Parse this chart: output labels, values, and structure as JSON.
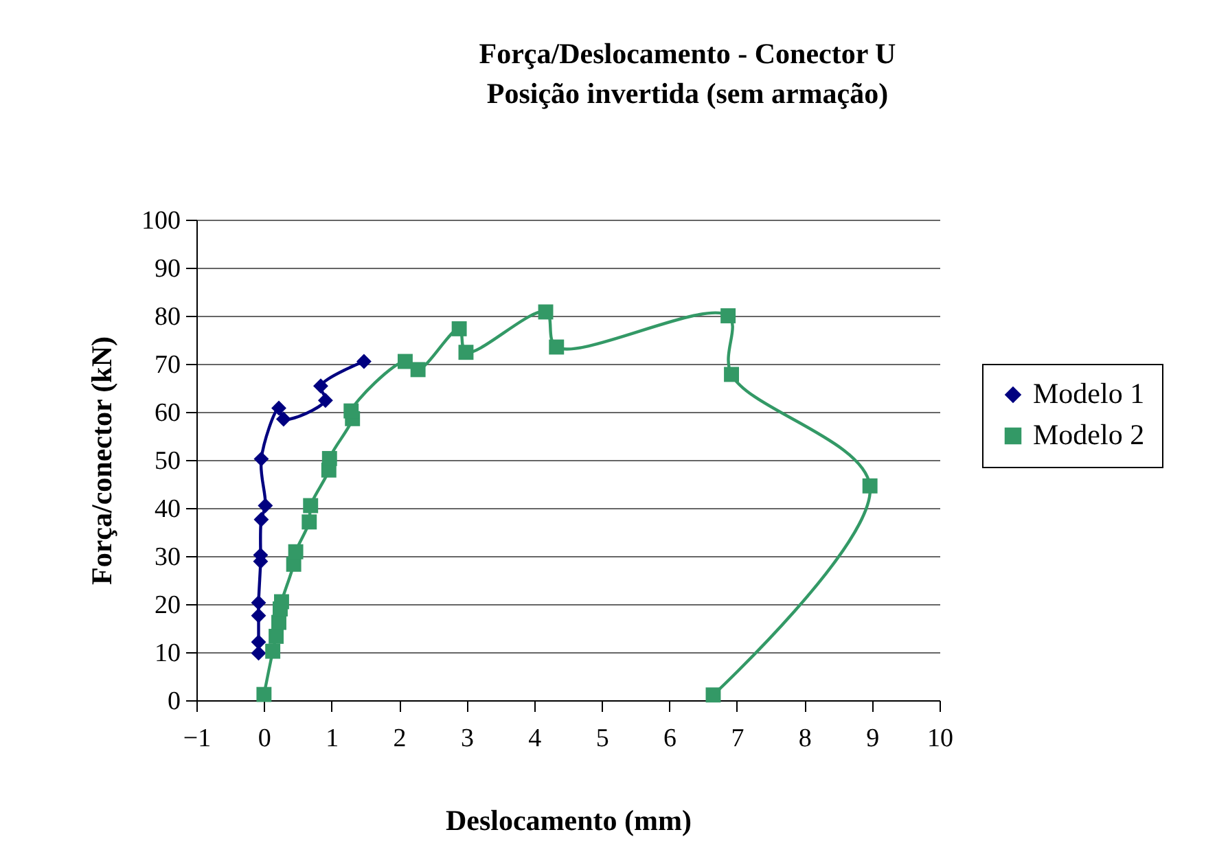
{
  "chart_data": {
    "type": "line",
    "title": "Força/Deslocamento - Conector U",
    "subtitle": "Posição invertida (sem armação)",
    "xlabel": "Deslocamento (mm)",
    "ylabel": "Força/conector (kN)",
    "xlim": [
      -1,
      10
    ],
    "xticks": [
      -1,
      0,
      1,
      2,
      3,
      4,
      5,
      6,
      7,
      8,
      9,
      10
    ],
    "ylim": [
      0,
      100
    ],
    "yticks": [
      0,
      10,
      20,
      30,
      40,
      50,
      60,
      70,
      80,
      90,
      100
    ],
    "grid": "y",
    "legend": "right",
    "series": [
      {
        "name": "Modelo 1",
        "color": "#000080",
        "marker": "diamond",
        "x": [
          -0.08,
          -0.08,
          -0.08,
          -0.08,
          -0.05,
          -0.05,
          -0.04,
          0.02,
          -0.04,
          0.22,
          0.29,
          0.91,
          0.84,
          1.48
        ],
        "values": [
          9.8,
          12.1,
          17.6,
          20.3,
          28.9,
          30.2,
          37.6,
          40.5,
          50.2,
          60.8,
          58.5,
          62.4,
          65.4,
          70.5
        ]
      },
      {
        "name": "Modelo 2",
        "color": "#339966",
        "marker": "square",
        "x": [
          0,
          0.13,
          0.18,
          0.22,
          0.24,
          0.26,
          0.44,
          0.47,
          0.67,
          0.69,
          0.96,
          0.97,
          1.31,
          1.29,
          2.09,
          2.28,
          2.89,
          2.99,
          4.17,
          4.33,
          6.87,
          6.92,
          8.97,
          6.65
        ],
        "values": [
          1.2,
          10.2,
          13.3,
          16.2,
          19,
          20.5,
          28.3,
          30.9,
          37.1,
          40.5,
          47.9,
          50.3,
          58.6,
          60.2,
          70.5,
          68.8,
          77.3,
          72.4,
          80.8,
          73.5,
          80,
          67.8,
          44.6,
          1.1
        ]
      }
    ]
  }
}
